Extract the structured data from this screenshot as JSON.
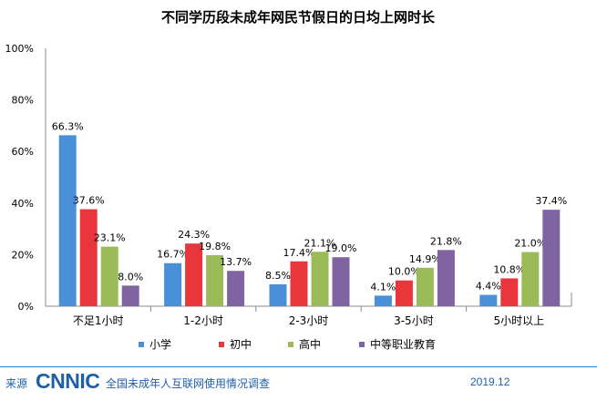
{
  "chart_data": {
    "type": "bar",
    "title": "不同学历段未成年网民节假日的日均上网时长",
    "categories": [
      "不足1小时",
      "1-2小时",
      "2-3小时",
      "3-5小时",
      "5小时以上"
    ],
    "series": [
      {
        "name": "小学",
        "color": "#4a90d9",
        "values": [
          66.3,
          16.7,
          8.5,
          4.1,
          4.4
        ]
      },
      {
        "name": "初中",
        "color": "#e8363c",
        "values": [
          37.6,
          24.3,
          17.4,
          10.0,
          10.8
        ]
      },
      {
        "name": "高中",
        "color": "#9bbb59",
        "values": [
          23.1,
          19.8,
          21.1,
          14.9,
          21.0
        ]
      },
      {
        "name": "中等职业教育",
        "color": "#8064a2",
        "values": [
          8.0,
          13.7,
          19.0,
          21.8,
          37.4
        ]
      }
    ],
    "ylim": [
      0,
      100
    ],
    "yticks": [
      "0%",
      "20%",
      "40%",
      "60%",
      "80%",
      "100%"
    ],
    "ytick_values": [
      0,
      20,
      40,
      60,
      80,
      100
    ],
    "grid": false,
    "legend": "bottom",
    "xlabel": "",
    "ylabel": ""
  },
  "footer": {
    "source_label": "来源",
    "logo_text": "CNNIC",
    "survey_name": "全国未成年人互联网使用情况调查",
    "date": "2019.12"
  }
}
